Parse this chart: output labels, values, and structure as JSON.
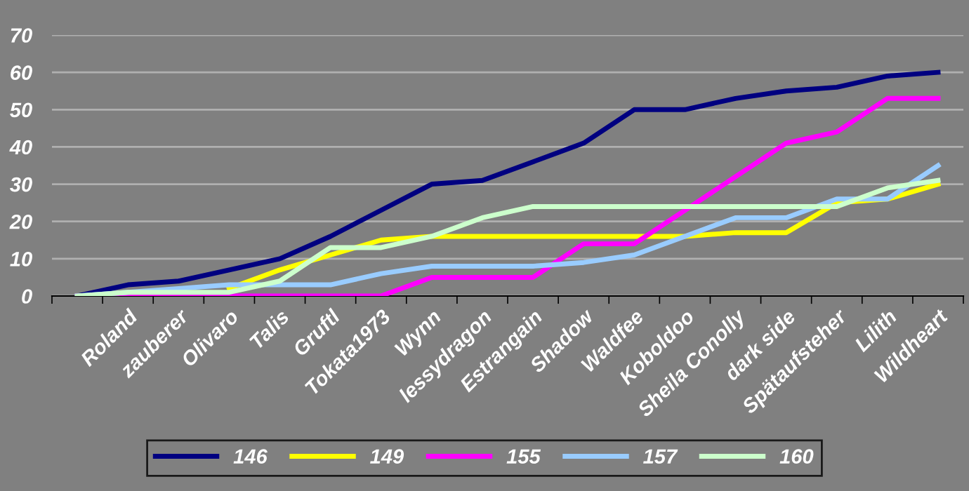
{
  "chart_data": {
    "type": "line",
    "categories": [
      null,
      "Roland",
      "zauberer",
      "Olivaro",
      "Talis",
      "Gruftl",
      "Tokata1973",
      "Wynn",
      "lessydragon",
      "Estrangain",
      "Shadow",
      "Waldfee",
      "Koboldoo",
      "Sheila Conolly",
      "dark side",
      "Spätaufsteher",
      "Lilith",
      "Wildheart"
    ],
    "series": [
      {
        "name": "146",
        "color": "#000080",
        "values": [
          0,
          3,
          4,
          7,
          10,
          16,
          23,
          30,
          31,
          36,
          41,
          50,
          50,
          53,
          55,
          56,
          59,
          60
        ]
      },
      {
        "name": "149",
        "color": "#ffff00",
        "values": [
          null,
          null,
          null,
          2,
          7,
          11,
          15,
          16,
          16,
          16,
          16,
          16,
          16,
          17,
          17,
          25,
          26,
          30
        ]
      },
      {
        "name": "155",
        "color": "#ff00ff",
        "values": [
          0,
          0,
          0,
          0,
          0,
          0,
          0,
          5,
          5,
          5,
          14,
          14,
          23,
          32,
          41,
          44,
          53,
          53
        ]
      },
      {
        "name": "157",
        "color": "#99ccff",
        "values": [
          0,
          1,
          2,
          3,
          3,
          3,
          6,
          8,
          8,
          8,
          9,
          11,
          16,
          21,
          21,
          26,
          26,
          35
        ]
      },
      {
        "name": "160",
        "color": "#ccffcc",
        "values": [
          0,
          1,
          1,
          1,
          4,
          13,
          13,
          16,
          21,
          24,
          24,
          24,
          24,
          24,
          24,
          24,
          29,
          31
        ]
      }
    ],
    "ylim": [
      0,
      70
    ],
    "yticks": [
      0,
      10,
      20,
      30,
      40,
      50,
      60,
      70
    ],
    "grid": "y",
    "legend": "bottom",
    "marker": "none",
    "line_style": "solid"
  }
}
